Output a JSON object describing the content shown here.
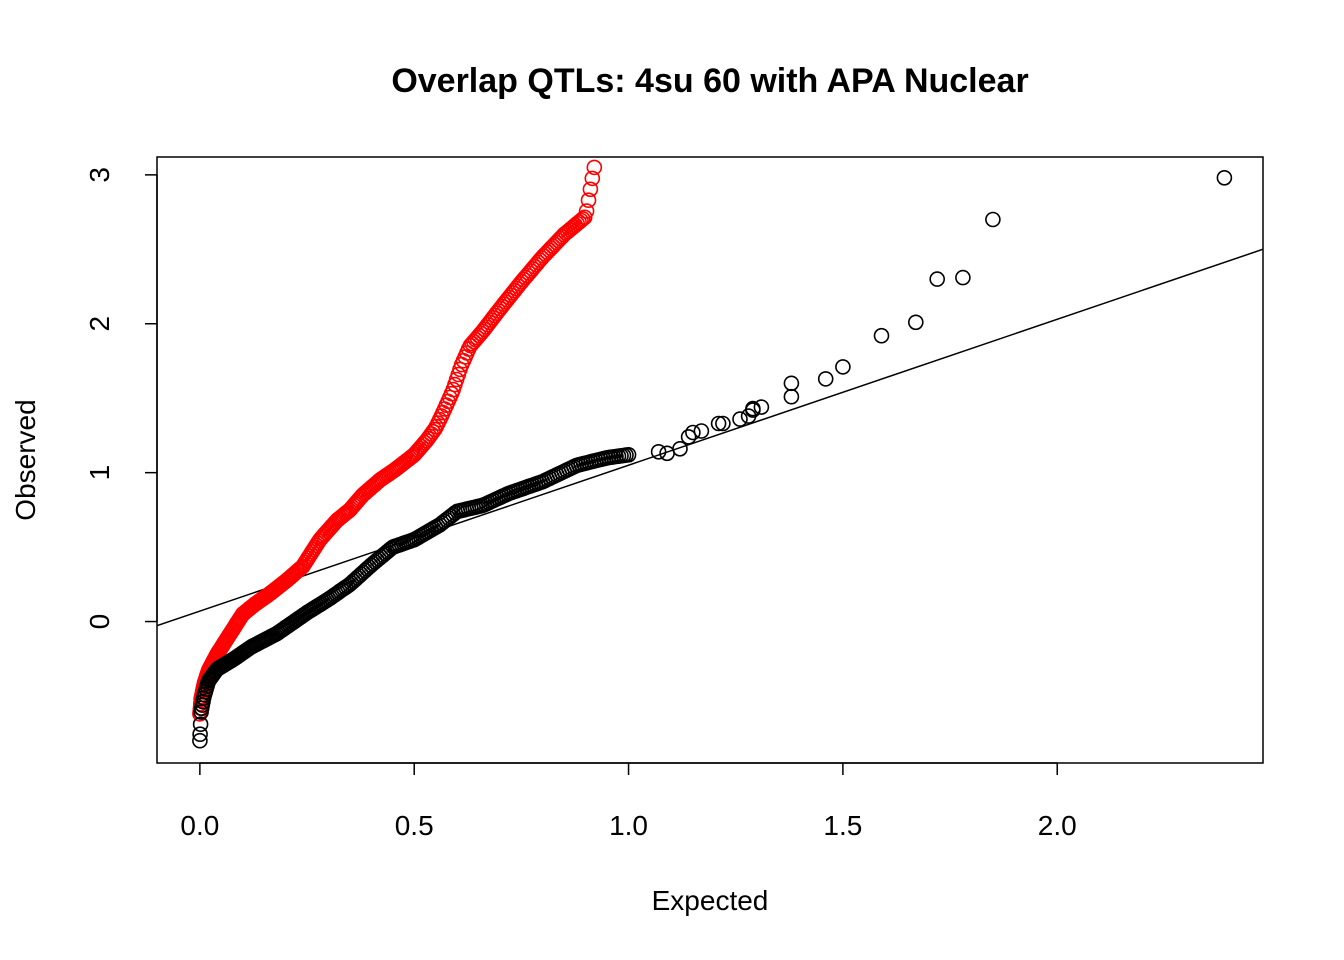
{
  "chart_data": {
    "type": "scatter",
    "title": "Overlap QTLs: 4su 60 with APA Nuclear",
    "xlabel": "Expected",
    "ylabel": "Observed",
    "xlim": [
      -0.1,
      2.48
    ],
    "ylim": [
      -0.95,
      3.12
    ],
    "x_ticks": [
      "0.0",
      "0.5",
      "1.0",
      "1.5",
      "2.0"
    ],
    "y_ticks": [
      "0",
      "1",
      "2",
      "3"
    ],
    "grid": false,
    "legend": "none",
    "reference_line": {
      "intercept": 0.07,
      "slope": 0.98
    },
    "series": [
      {
        "color": "#ff0000",
        "curve": [
          [
            0,
            -0.62
          ],
          [
            0.003,
            -0.52
          ],
          [
            0.01,
            -0.42
          ],
          [
            0.02,
            -0.33
          ],
          [
            0.04,
            -0.22
          ],
          [
            0.06,
            -0.13
          ],
          [
            0.08,
            -0.04
          ],
          [
            0.1,
            0.05
          ],
          [
            0.13,
            0.12
          ],
          [
            0.16,
            0.18
          ],
          [
            0.2,
            0.27
          ],
          [
            0.24,
            0.37
          ],
          [
            0.28,
            0.55
          ],
          [
            0.32,
            0.68
          ],
          [
            0.35,
            0.75
          ],
          [
            0.38,
            0.85
          ],
          [
            0.42,
            0.95
          ],
          [
            0.46,
            1.03
          ],
          [
            0.5,
            1.12
          ],
          [
            0.53,
            1.22
          ],
          [
            0.55,
            1.3
          ],
          [
            0.57,
            1.42
          ],
          [
            0.59,
            1.55
          ],
          [
            0.61,
            1.72
          ],
          [
            0.63,
            1.85
          ],
          [
            0.66,
            1.95
          ],
          [
            0.7,
            2.1
          ],
          [
            0.75,
            2.28
          ],
          [
            0.8,
            2.45
          ],
          [
            0.85,
            2.6
          ],
          [
            0.9,
            2.72
          ],
          [
            0.92,
            3.05
          ]
        ],
        "n": 280
      },
      {
        "color": "#000000",
        "curve": [
          [
            0,
            -0.8
          ],
          [
            0.003,
            -0.6
          ],
          [
            0.01,
            -0.5
          ],
          [
            0.02,
            -0.4
          ],
          [
            0.04,
            -0.32
          ],
          [
            0.08,
            -0.25
          ],
          [
            0.12,
            -0.17
          ],
          [
            0.18,
            -0.08
          ],
          [
            0.25,
            0.06
          ],
          [
            0.3,
            0.15
          ],
          [
            0.35,
            0.25
          ],
          [
            0.4,
            0.38
          ],
          [
            0.45,
            0.5
          ],
          [
            0.5,
            0.55
          ],
          [
            0.56,
            0.65
          ],
          [
            0.6,
            0.74
          ],
          [
            0.66,
            0.78
          ],
          [
            0.72,
            0.86
          ],
          [
            0.8,
            0.94
          ],
          [
            0.88,
            1.05
          ],
          [
            0.95,
            1.1
          ],
          [
            1.0,
            1.12
          ]
        ],
        "n": 230,
        "extra_points": [
          [
            1.07,
            1.14
          ],
          [
            1.09,
            1.13
          ],
          [
            1.12,
            1.16
          ],
          [
            1.14,
            1.24
          ],
          [
            1.15,
            1.27
          ],
          [
            1.17,
            1.28
          ],
          [
            1.21,
            1.33
          ],
          [
            1.22,
            1.33
          ],
          [
            1.26,
            1.36
          ],
          [
            1.28,
            1.38
          ],
          [
            1.29,
            1.42
          ],
          [
            1.29,
            1.43
          ],
          [
            1.31,
            1.44
          ],
          [
            1.38,
            1.51
          ],
          [
            1.38,
            1.6
          ],
          [
            1.46,
            1.63
          ],
          [
            1.5,
            1.71
          ],
          [
            1.59,
            1.92
          ],
          [
            1.67,
            2.01
          ],
          [
            1.72,
            2.3
          ],
          [
            1.78,
            2.31
          ],
          [
            1.85,
            2.7
          ],
          [
            2.39,
            2.98
          ]
        ]
      }
    ]
  }
}
